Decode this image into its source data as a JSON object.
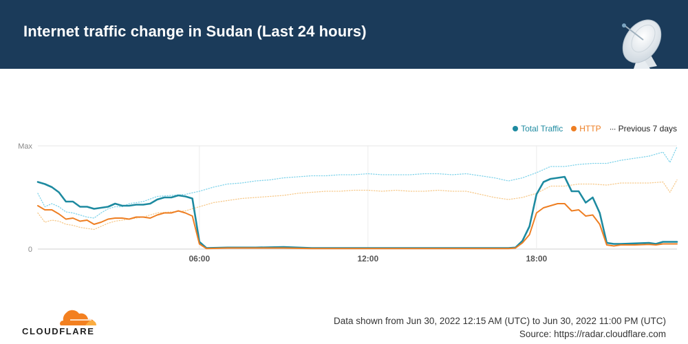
{
  "header": {
    "title": "Internet traffic change in Sudan (Last 24 hours)"
  },
  "legend": {
    "items": [
      {
        "label": "Total Traffic",
        "color": "#1d8aa0",
        "marker": "dot"
      },
      {
        "label": "HTTP",
        "color": "#ee7e22",
        "marker": "dot"
      },
      {
        "label": "Previous 7 days",
        "color": "#333333",
        "marker": "dotted"
      }
    ]
  },
  "footer": {
    "data_range": "Data shown from Jun 30, 2022 12:15 AM (UTC) to Jun 30, 2022 11:00 PM (UTC)",
    "source": "Source: https://radar.cloudflare.com",
    "logo_text": "CLOUDFLARE"
  },
  "chart_data": {
    "type": "line",
    "title": "",
    "xlabel": "",
    "ylabel": "",
    "ylim_labels": [
      "0",
      "Max"
    ],
    "ylim": [
      0,
      1
    ],
    "xlim": [
      0.25,
      23
    ],
    "x_ticks": [
      {
        "value": 6,
        "label": "06:00"
      },
      {
        "value": 12,
        "label": "12:00"
      },
      {
        "value": 18,
        "label": "18:00"
      }
    ],
    "grid": "vertical",
    "legend_position": "top-right",
    "series": [
      {
        "name": "Total Traffic",
        "color": "#1d8aa0",
        "style": "solid",
        "points": [
          [
            0.25,
            0.65
          ],
          [
            0.5,
            0.63
          ],
          [
            0.75,
            0.6
          ],
          [
            1.0,
            0.55
          ],
          [
            1.25,
            0.46
          ],
          [
            1.5,
            0.46
          ],
          [
            1.75,
            0.41
          ],
          [
            2.0,
            0.41
          ],
          [
            2.25,
            0.39
          ],
          [
            2.5,
            0.4
          ],
          [
            2.75,
            0.41
          ],
          [
            3.0,
            0.44
          ],
          [
            3.25,
            0.42
          ],
          [
            3.5,
            0.42
          ],
          [
            3.75,
            0.43
          ],
          [
            4.0,
            0.43
          ],
          [
            4.25,
            0.44
          ],
          [
            4.5,
            0.48
          ],
          [
            4.75,
            0.5
          ],
          [
            5.0,
            0.5
          ],
          [
            5.25,
            0.52
          ],
          [
            5.5,
            0.51
          ],
          [
            5.75,
            0.49
          ],
          [
            6.0,
            0.07
          ],
          [
            6.25,
            0.01
          ],
          [
            7,
            0.015
          ],
          [
            8,
            0.015
          ],
          [
            9,
            0.02
          ],
          [
            10,
            0.01
          ],
          [
            11,
            0.01
          ],
          [
            12,
            0.01
          ],
          [
            13,
            0.01
          ],
          [
            14,
            0.01
          ],
          [
            15,
            0.01
          ],
          [
            16,
            0.01
          ],
          [
            17,
            0.01
          ],
          [
            17.25,
            0.015
          ],
          [
            17.5,
            0.08
          ],
          [
            17.75,
            0.22
          ],
          [
            18.0,
            0.53
          ],
          [
            18.25,
            0.65
          ],
          [
            18.5,
            0.68
          ],
          [
            18.75,
            0.69
          ],
          [
            19.0,
            0.7
          ],
          [
            19.25,
            0.56
          ],
          [
            19.5,
            0.56
          ],
          [
            19.75,
            0.45
          ],
          [
            20.0,
            0.5
          ],
          [
            20.25,
            0.35
          ],
          [
            20.5,
            0.06
          ],
          [
            20.75,
            0.05
          ],
          [
            21.0,
            0.05
          ],
          [
            21.5,
            0.055
          ],
          [
            22.0,
            0.06
          ],
          [
            22.25,
            0.05
          ],
          [
            22.5,
            0.07
          ],
          [
            23.0,
            0.07
          ]
        ]
      },
      {
        "name": "HTTP",
        "color": "#ee7e22",
        "style": "solid",
        "points": [
          [
            0.25,
            0.42
          ],
          [
            0.5,
            0.38
          ],
          [
            0.75,
            0.38
          ],
          [
            1.0,
            0.34
          ],
          [
            1.25,
            0.29
          ],
          [
            1.5,
            0.3
          ],
          [
            1.75,
            0.27
          ],
          [
            2.0,
            0.28
          ],
          [
            2.25,
            0.24
          ],
          [
            2.5,
            0.26
          ],
          [
            2.75,
            0.29
          ],
          [
            3.0,
            0.3
          ],
          [
            3.25,
            0.3
          ],
          [
            3.5,
            0.29
          ],
          [
            3.75,
            0.31
          ],
          [
            4.0,
            0.31
          ],
          [
            4.25,
            0.3
          ],
          [
            4.5,
            0.33
          ],
          [
            4.75,
            0.35
          ],
          [
            5.0,
            0.35
          ],
          [
            5.25,
            0.37
          ],
          [
            5.5,
            0.35
          ],
          [
            5.75,
            0.32
          ],
          [
            6.0,
            0.05
          ],
          [
            6.25,
            0.005
          ],
          [
            7,
            0.01
          ],
          [
            8,
            0.01
          ],
          [
            9,
            0.01
          ],
          [
            10,
            0.005
          ],
          [
            11,
            0.005
          ],
          [
            12,
            0.005
          ],
          [
            13,
            0.005
          ],
          [
            14,
            0.005
          ],
          [
            15,
            0.005
          ],
          [
            16,
            0.005
          ],
          [
            17,
            0.005
          ],
          [
            17.25,
            0.01
          ],
          [
            17.5,
            0.06
          ],
          [
            17.75,
            0.14
          ],
          [
            18.0,
            0.35
          ],
          [
            18.25,
            0.4
          ],
          [
            18.5,
            0.42
          ],
          [
            18.75,
            0.44
          ],
          [
            19.0,
            0.44
          ],
          [
            19.25,
            0.37
          ],
          [
            19.5,
            0.38
          ],
          [
            19.75,
            0.32
          ],
          [
            20.0,
            0.33
          ],
          [
            20.25,
            0.24
          ],
          [
            20.5,
            0.04
          ],
          [
            20.75,
            0.03
          ],
          [
            21.0,
            0.04
          ],
          [
            21.5,
            0.04
          ],
          [
            22.0,
            0.045
          ],
          [
            22.25,
            0.04
          ],
          [
            22.5,
            0.05
          ],
          [
            23.0,
            0.05
          ]
        ]
      },
      {
        "name": "Previous 7 days",
        "color": "#7fd3ea",
        "style": "dotted",
        "points": [
          [
            0.25,
            0.54
          ],
          [
            0.5,
            0.41
          ],
          [
            0.75,
            0.44
          ],
          [
            1.0,
            0.41
          ],
          [
            1.25,
            0.36
          ],
          [
            1.5,
            0.35
          ],
          [
            1.75,
            0.33
          ],
          [
            2.0,
            0.31
          ],
          [
            2.25,
            0.3
          ],
          [
            2.5,
            0.35
          ],
          [
            2.75,
            0.39
          ],
          [
            3.0,
            0.41
          ],
          [
            3.25,
            0.41
          ],
          [
            3.5,
            0.44
          ],
          [
            4.0,
            0.46
          ],
          [
            4.5,
            0.51
          ],
          [
            5.0,
            0.52
          ],
          [
            5.5,
            0.53
          ],
          [
            6.0,
            0.56
          ],
          [
            6.5,
            0.6
          ],
          [
            7.0,
            0.63
          ],
          [
            7.5,
            0.64
          ],
          [
            8.0,
            0.66
          ],
          [
            8.5,
            0.67
          ],
          [
            9.0,
            0.69
          ],
          [
            9.5,
            0.7
          ],
          [
            10.0,
            0.71
          ],
          [
            10.5,
            0.71
          ],
          [
            11.0,
            0.72
          ],
          [
            11.5,
            0.72
          ],
          [
            12.0,
            0.73
          ],
          [
            12.5,
            0.72
          ],
          [
            13.0,
            0.72
          ],
          [
            13.5,
            0.72
          ],
          [
            14.0,
            0.73
          ],
          [
            14.5,
            0.73
          ],
          [
            15.0,
            0.72
          ],
          [
            15.5,
            0.73
          ],
          [
            16.0,
            0.71
          ],
          [
            16.5,
            0.69
          ],
          [
            17.0,
            0.66
          ],
          [
            17.5,
            0.69
          ],
          [
            18.0,
            0.74
          ],
          [
            18.5,
            0.8
          ],
          [
            19.0,
            0.8
          ],
          [
            19.5,
            0.82
          ],
          [
            20.0,
            0.83
          ],
          [
            20.5,
            0.83
          ],
          [
            21.0,
            0.86
          ],
          [
            21.5,
            0.88
          ],
          [
            22.0,
            0.9
          ],
          [
            22.5,
            0.94
          ],
          [
            22.75,
            0.84
          ],
          [
            23.0,
            0.99
          ]
        ]
      },
      {
        "name": "Previous 7 days (HTTP)",
        "color": "#f7c98a",
        "style": "dotted",
        "points": [
          [
            0.25,
            0.35
          ],
          [
            0.5,
            0.26
          ],
          [
            0.75,
            0.28
          ],
          [
            1.0,
            0.27
          ],
          [
            1.25,
            0.24
          ],
          [
            1.5,
            0.23
          ],
          [
            1.75,
            0.21
          ],
          [
            2.0,
            0.2
          ],
          [
            2.25,
            0.19
          ],
          [
            2.5,
            0.22
          ],
          [
            2.75,
            0.25
          ],
          [
            3.0,
            0.27
          ],
          [
            3.25,
            0.28
          ],
          [
            3.5,
            0.29
          ],
          [
            4.0,
            0.31
          ],
          [
            4.5,
            0.35
          ],
          [
            5.0,
            0.36
          ],
          [
            5.5,
            0.37
          ],
          [
            6.0,
            0.41
          ],
          [
            6.5,
            0.45
          ],
          [
            7.0,
            0.47
          ],
          [
            7.5,
            0.49
          ],
          [
            8.0,
            0.5
          ],
          [
            8.5,
            0.51
          ],
          [
            9.0,
            0.52
          ],
          [
            9.5,
            0.54
          ],
          [
            10.0,
            0.55
          ],
          [
            10.5,
            0.56
          ],
          [
            11.0,
            0.56
          ],
          [
            11.5,
            0.57
          ],
          [
            12.0,
            0.57
          ],
          [
            12.5,
            0.56
          ],
          [
            13.0,
            0.57
          ],
          [
            13.5,
            0.56
          ],
          [
            14.0,
            0.56
          ],
          [
            14.5,
            0.57
          ],
          [
            15.0,
            0.56
          ],
          [
            15.5,
            0.56
          ],
          [
            16.0,
            0.53
          ],
          [
            16.5,
            0.5
          ],
          [
            17.0,
            0.48
          ],
          [
            17.5,
            0.5
          ],
          [
            18.0,
            0.54
          ],
          [
            18.5,
            0.61
          ],
          [
            19.0,
            0.61
          ],
          [
            19.5,
            0.63
          ],
          [
            20.0,
            0.63
          ],
          [
            20.5,
            0.62
          ],
          [
            21.0,
            0.64
          ],
          [
            21.5,
            0.64
          ],
          [
            22.0,
            0.64
          ],
          [
            22.5,
            0.65
          ],
          [
            22.75,
            0.55
          ],
          [
            23.0,
            0.67
          ]
        ]
      }
    ]
  }
}
